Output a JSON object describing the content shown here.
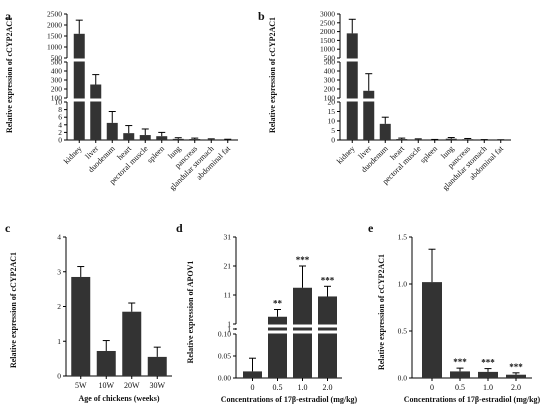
{
  "chart_data": [
    {
      "panel": "a",
      "type": "bar",
      "axis_type": "broken",
      "ylabel": "Relative expression of cCYP2AC1",
      "xlabel": "",
      "categories": [
        "kidney",
        "liver",
        "duodenum",
        "heart",
        "pectoral muscle",
        "spleen",
        "lung",
        "pancreas",
        "glandular stomach",
        "abdominal fat"
      ],
      "series": [
        {
          "values": [
            1600,
            250,
            4.5,
            1.8,
            1.3,
            1.0,
            0.3,
            0.25,
            0.15,
            0.1
          ]
        }
      ],
      "errors": [
        620,
        110,
        3.0,
        2.0,
        1.6,
        1.0,
        0.3,
        0.25,
        0.15,
        0.1
      ],
      "y_segments": [
        {
          "range": [
            0,
            10
          ],
          "ticks": [
            "0",
            "2",
            "4",
            "6",
            "8",
            "10"
          ]
        },
        {
          "range": [
            100,
            500
          ],
          "ticks": [
            "100",
            "200",
            "300",
            "400",
            "500"
          ]
        },
        {
          "range": [
            500,
            2500
          ],
          "ticks": [
            "500",
            "1000",
            "1500",
            "2000",
            "2500"
          ]
        }
      ],
      "significance": []
    },
    {
      "panel": "b",
      "type": "bar",
      "axis_type": "broken",
      "ylabel": "Relative expression of cCYP2AC1",
      "xlabel": "",
      "categories": [
        "kidney",
        "liver",
        "duodenum",
        "heart",
        "pectoral muscle",
        "spleen",
        "lung",
        "pancreas",
        "glandular stomach",
        "abdominal fat"
      ],
      "series": [
        {
          "values": [
            1900,
            180,
            8.5,
            0.5,
            0.3,
            0.15,
            0.7,
            0.4,
            0.1,
            0.05
          ]
        }
      ],
      "errors": [
        800,
        190,
        3.5,
        0.5,
        0.3,
        0.15,
        0.6,
        0.4,
        0.1,
        0.05
      ],
      "y_segments": [
        {
          "range": [
            0,
            20
          ],
          "ticks": [
            "0",
            "5",
            "10",
            "15",
            "20"
          ]
        },
        {
          "range": [
            100,
            500
          ],
          "ticks": [
            "100",
            "200",
            "300",
            "400",
            "500"
          ]
        },
        {
          "range": [
            500,
            3000
          ],
          "ticks": [
            "500",
            "1000",
            "1500",
            "2000",
            "2500",
            "3000"
          ]
        }
      ],
      "significance": []
    },
    {
      "panel": "c",
      "type": "bar",
      "axis_type": "linear",
      "ylabel": "Relative expression of cCYP2AC1",
      "xlabel": "Age of chickens (weeks)",
      "categories": [
        "5W",
        "10W",
        "20W",
        "30W"
      ],
      "series": [
        {
          "values": [
            2.85,
            0.72,
            1.85,
            0.55
          ]
        }
      ],
      "errors": [
        0.3,
        0.3,
        0.25,
        0.28
      ],
      "ylim": [
        0,
        4
      ],
      "ticks": [
        "0",
        "1",
        "2",
        "3",
        "4"
      ],
      "significance": []
    },
    {
      "panel": "d",
      "type": "bar",
      "axis_type": "broken",
      "ylabel": "Relative expression of APOV1",
      "xlabel": "Concentrations of 17β-estradiol (mg/kg)",
      "categories": [
        "0",
        "0.5",
        "1.0",
        "2.0"
      ],
      "series": [
        {
          "values": [
            0.015,
            3.5,
            13.5,
            10.5
          ]
        }
      ],
      "errors": [
        0.03,
        2.5,
        7.5,
        3.5
      ],
      "y_segments": [
        {
          "range": [
            0,
            0.1
          ],
          "ticks": [
            "0.00",
            "0.05",
            "0.10"
          ]
        },
        {
          "range": [
            0.1,
            1
          ],
          "ticks": [
            "1"
          ]
        },
        {
          "range": [
            1,
            31
          ],
          "ticks": [
            "1",
            "11",
            "21",
            "31"
          ]
        }
      ],
      "significance": [
        "",
        "**",
        "***",
        "***"
      ]
    },
    {
      "panel": "e",
      "type": "bar",
      "axis_type": "linear",
      "ylabel": "Relative expression of cCYP2AC1",
      "xlabel": "Concentrations of 17β-estradiol (mg/kg)",
      "categories": [
        "0",
        "0.5",
        "1.0",
        "2.0"
      ],
      "series": [
        {
          "values": [
            1.02,
            0.07,
            0.065,
            0.035
          ]
        }
      ],
      "errors": [
        0.35,
        0.035,
        0.035,
        0.02
      ],
      "ylim": [
        0,
        1.5
      ],
      "ticks": [
        "0.0",
        "0.5",
        "1.0",
        "1.5"
      ],
      "significance": [
        "",
        "***",
        "***",
        "***"
      ]
    }
  ],
  "style": {
    "bar_color": "#333333",
    "axis_color": "#000000",
    "background": "#ffffff"
  }
}
